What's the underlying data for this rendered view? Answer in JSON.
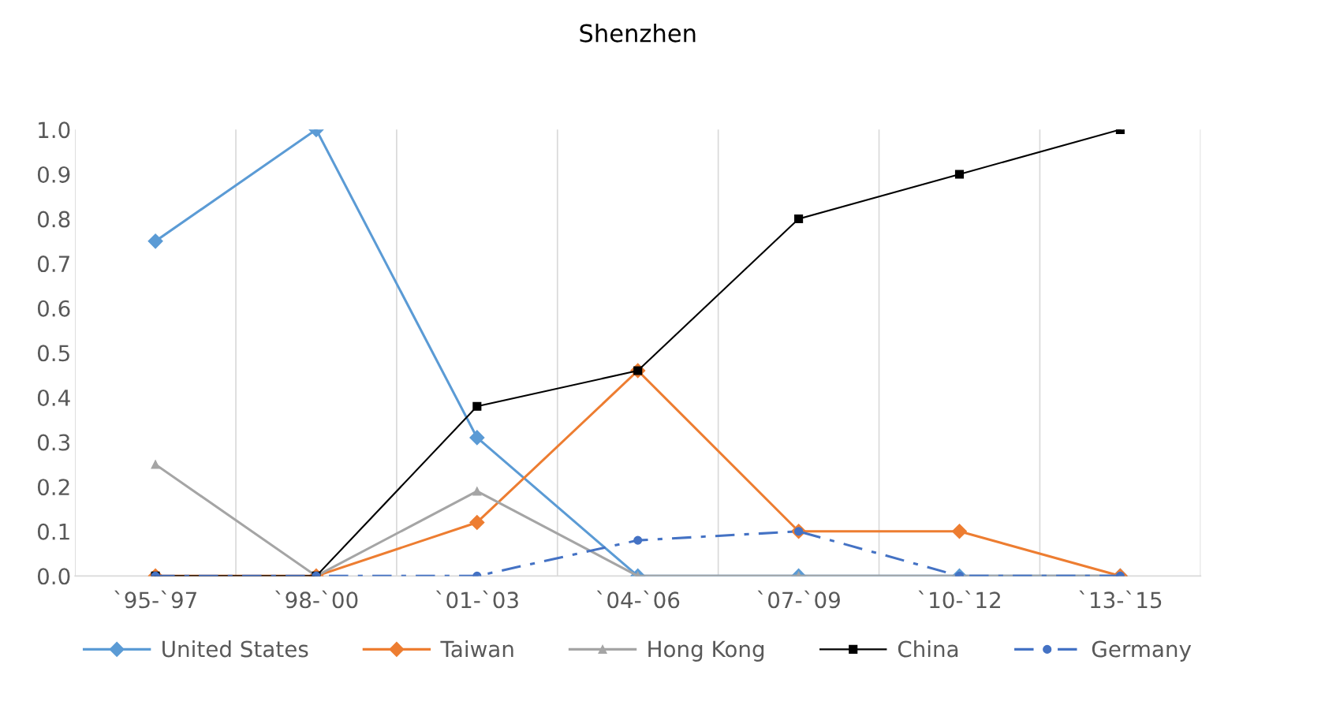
{
  "chart_data": {
    "type": "line",
    "title": "Shenzhen",
    "categories": [
      "`95-`97",
      "`98-`00",
      "`01-`03",
      "`04-`06",
      "`07-`09",
      "`10-`12",
      "`13-`15"
    ],
    "series": [
      {
        "name": "United States",
        "color": "#5b9bd5",
        "marker": "diamond",
        "line_style": "solid",
        "values": [
          0.75,
          1.0,
          0.31,
          0.0,
          0.0,
          0.0,
          0.0
        ]
      },
      {
        "name": "Taiwan",
        "color": "#ed7d31",
        "marker": "diamond",
        "line_style": "solid",
        "values": [
          0.0,
          0.0,
          0.12,
          0.46,
          0.1,
          0.1,
          0.0
        ]
      },
      {
        "name": "Hong Kong",
        "color": "#a5a5a5",
        "marker": "triangle",
        "line_style": "solid",
        "values": [
          0.25,
          0.0,
          0.19,
          0.0,
          0.0,
          0.0,
          0.0
        ]
      },
      {
        "name": "China",
        "color": "#000000",
        "marker": "square",
        "line_style": "solid",
        "values": [
          0.0,
          0.0,
          0.38,
          0.46,
          0.8,
          0.9,
          1.0
        ]
      },
      {
        "name": "Germany",
        "color": "#4472c4",
        "marker": "circle",
        "line_style": "dashed",
        "values": [
          0.0,
          0.0,
          0.0,
          0.08,
          0.1,
          0.0,
          0.0
        ]
      }
    ],
    "ylim": [
      0,
      1.0
    ],
    "yticks": [
      {
        "value": 0,
        "label": "0.0"
      },
      0.1,
      0.2,
      0.3,
      0.4,
      0.5,
      0.6,
      0.7,
      0.8,
      0.9,
      {
        "value": 1.0,
        "label": "1.0"
      }
    ],
    "grid": "x",
    "legend": "bottom"
  }
}
